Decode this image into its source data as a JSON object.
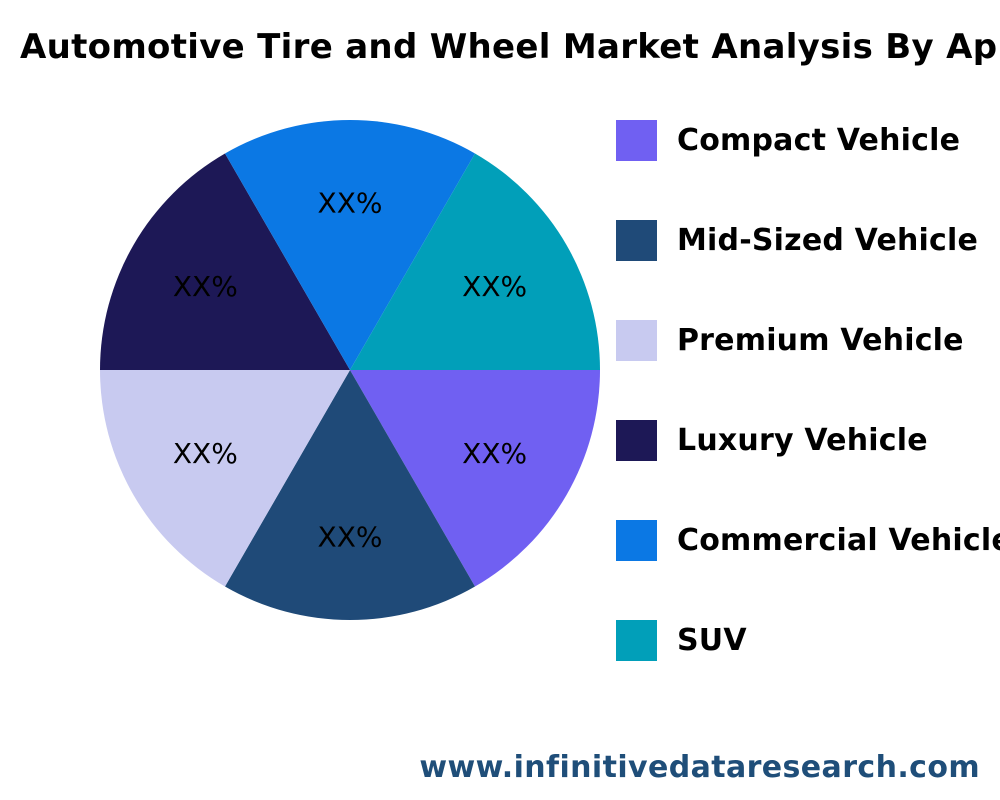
{
  "chart_data": {
    "type": "pie",
    "title": "Automotive Tire and Wheel Market Analysis By Application",
    "legend_position": "right",
    "slices": [
      {
        "label": "Compact Vehicle",
        "value": 16.67,
        "value_label": "XX%",
        "color": "#7060f2"
      },
      {
        "label": "Mid-Sized Vehicle",
        "value": 16.67,
        "value_label": "XX%",
        "color": "#1f4a78"
      },
      {
        "label": "Premium Vehicle",
        "value": 16.67,
        "value_label": "XX%",
        "color": "#c8caf0"
      },
      {
        "label": "Luxury Vehicle",
        "value": 16.67,
        "value_label": "XX%",
        "color": "#1d1856"
      },
      {
        "label": "Commercial Vehicle",
        "value": 16.67,
        "value_label": "XX%",
        "color": "#0b78e4"
      },
      {
        "label": "SUV",
        "value": 16.67,
        "value_label": "XX%",
        "color": "#019fb9"
      }
    ]
  },
  "footer": {
    "url": "www.infinitivedataresearch.com"
  }
}
